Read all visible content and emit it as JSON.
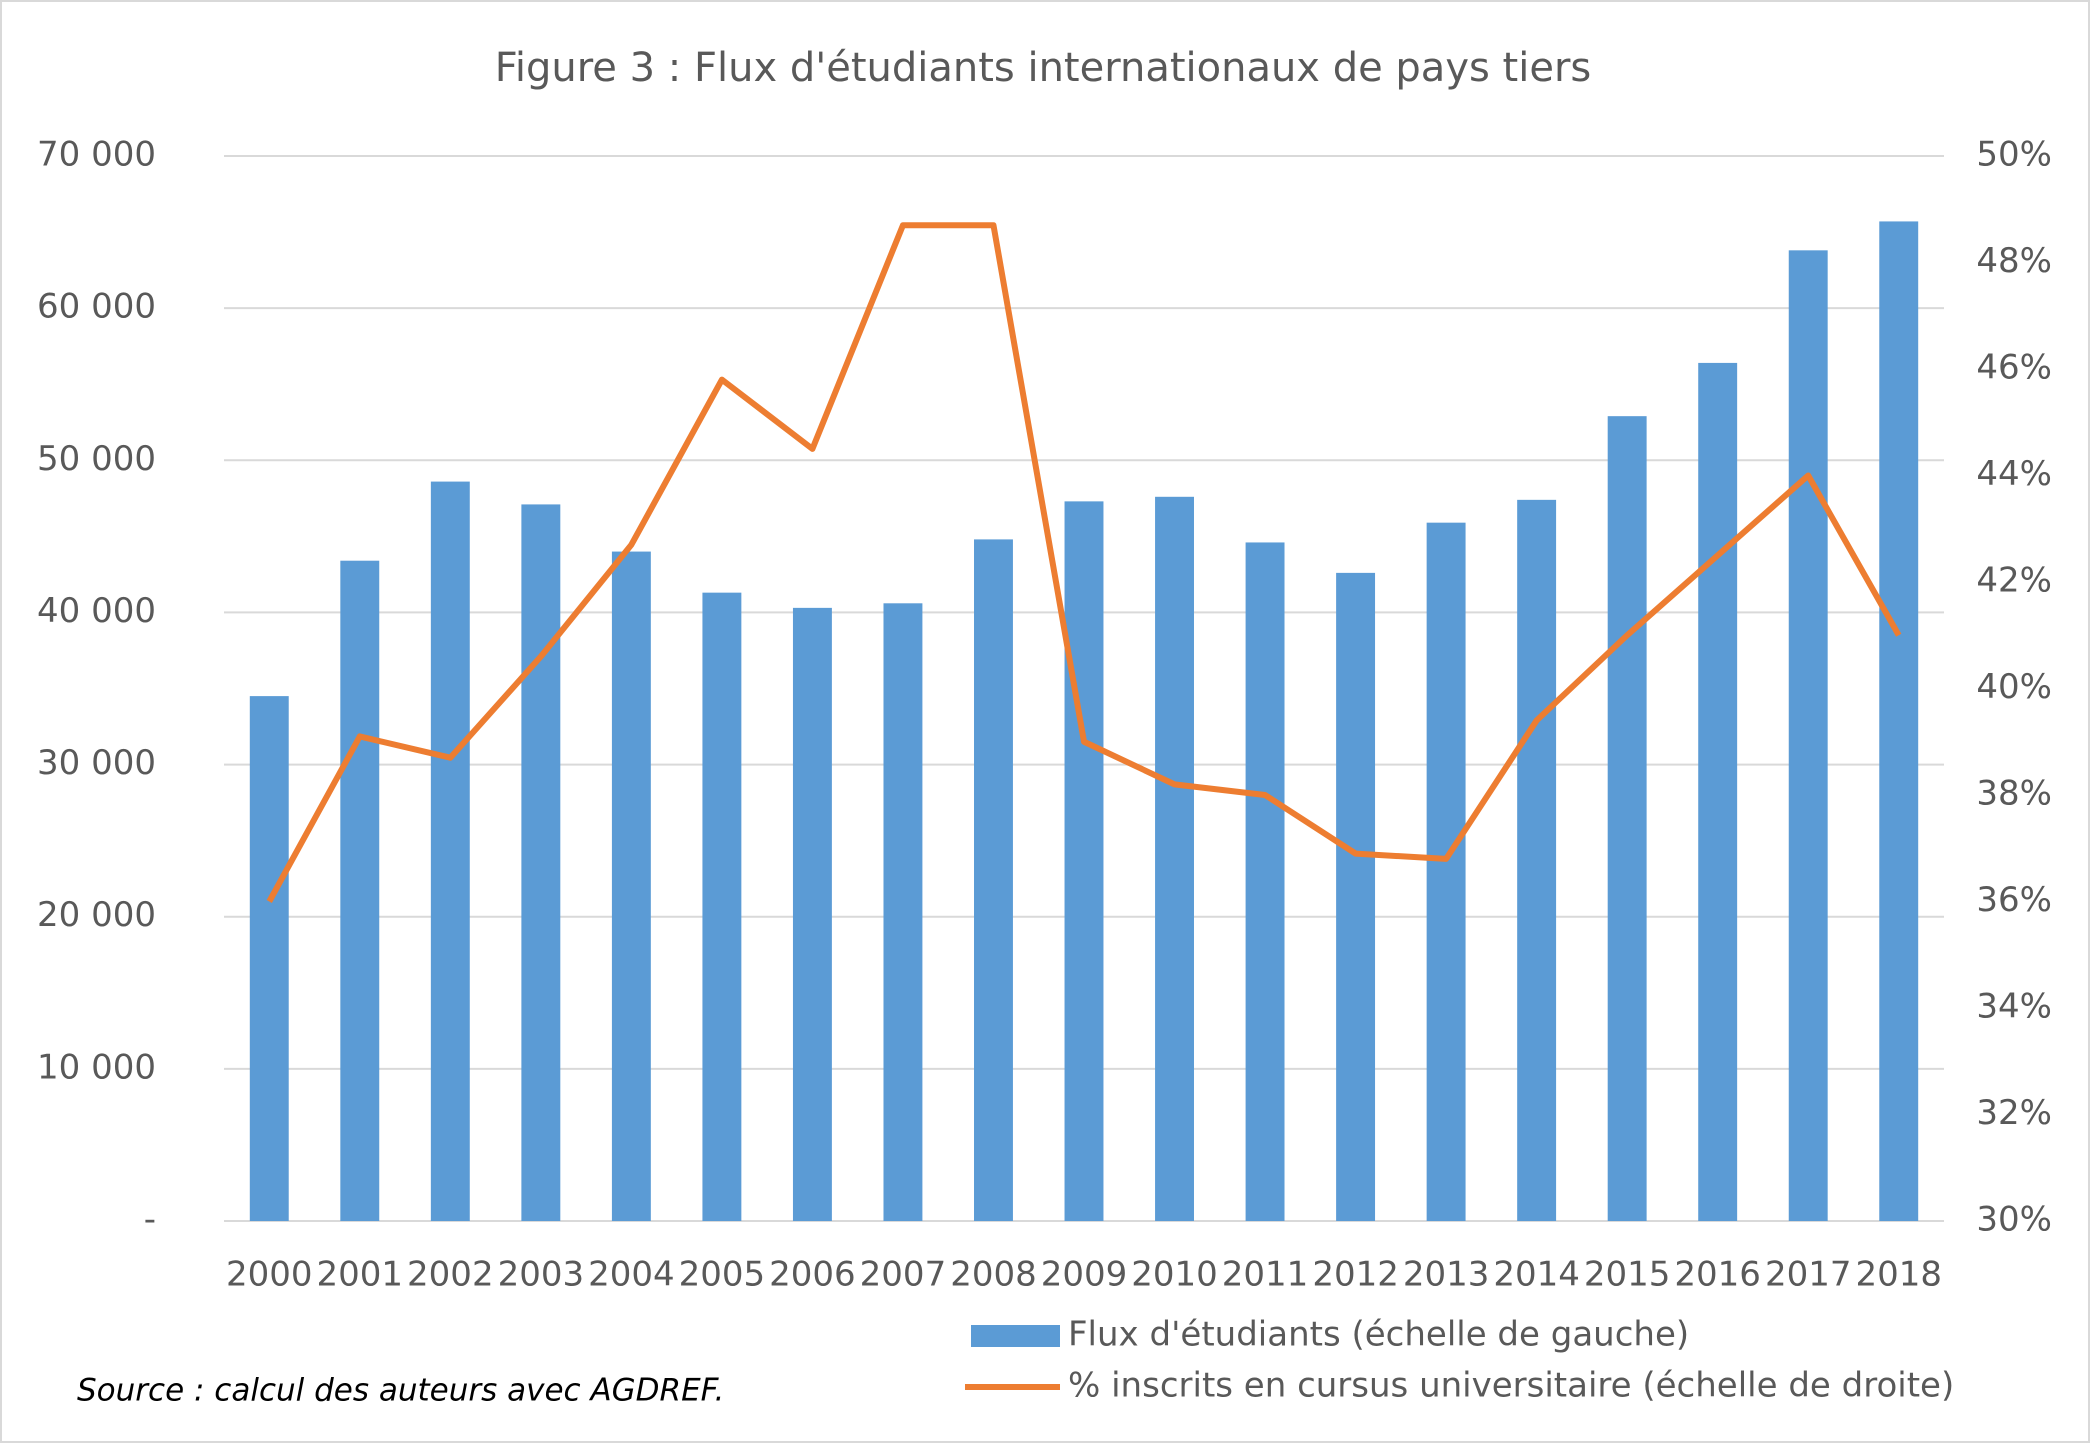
{
  "chart_data": {
    "type": "combo",
    "title": "Figure 3 : Flux d'étudiants internationaux de pays tiers",
    "source": "Source : calcul des auteurs avec AGDREF.",
    "categories": [
      "2000",
      "2001",
      "2002",
      "2003",
      "2004",
      "2005",
      "2006",
      "2007",
      "2008",
      "2009",
      "2010",
      "2011",
      "2012",
      "2013",
      "2014",
      "2015",
      "2016",
      "2017",
      "2018"
    ],
    "series": [
      {
        "name": "Flux d'étudiants (échelle de gauche)",
        "type": "bar",
        "color": "#5b9bd5",
        "values": [
          34500,
          43400,
          48600,
          47100,
          44000,
          41300,
          40300,
          40600,
          44800,
          47300,
          47600,
          44600,
          42600,
          45900,
          47400,
          52900,
          56400,
          63800,
          65700
        ]
      },
      {
        "name": "% inscrits en cursus universitaire (échelle de droite)",
        "type": "line",
        "axis": "y2",
        "color": "#ed7d31",
        "values": [
          36.0,
          39.1,
          38.7,
          40.6,
          42.7,
          45.8,
          44.5,
          48.7,
          48.7,
          39.0,
          38.2,
          38.0,
          36.9,
          36.8,
          39.4,
          41.0,
          42.5,
          44.0,
          41.0
        ]
      }
    ],
    "ylim": [
      0,
      70000
    ],
    "yticks": [
      {
        "value": 0,
        "label": "-"
      },
      {
        "value": 10000,
        "label": "10 000"
      },
      {
        "value": 20000,
        "label": "20 000"
      },
      {
        "value": 30000,
        "label": "30 000"
      },
      {
        "value": 40000,
        "label": "40 000"
      },
      {
        "value": 50000,
        "label": "50 000"
      },
      {
        "value": 60000,
        "label": "60 000"
      },
      {
        "value": 70000,
        "label": "70 000"
      }
    ],
    "y2lim": [
      30,
      50
    ],
    "y2ticks": [
      {
        "value": 30,
        "label": "30%"
      },
      {
        "value": 32,
        "label": "32%"
      },
      {
        "value": 34,
        "label": "34%"
      },
      {
        "value": 36,
        "label": "36%"
      },
      {
        "value": 38,
        "label": "38%"
      },
      {
        "value": 40,
        "label": "40%"
      },
      {
        "value": 42,
        "label": "42%"
      },
      {
        "value": 44,
        "label": "44%"
      },
      {
        "value": 46,
        "label": "46%"
      },
      {
        "value": 48,
        "label": "48%"
      },
      {
        "value": 50,
        "label": "50%"
      }
    ],
    "grid": true,
    "legend": "bottom"
  }
}
